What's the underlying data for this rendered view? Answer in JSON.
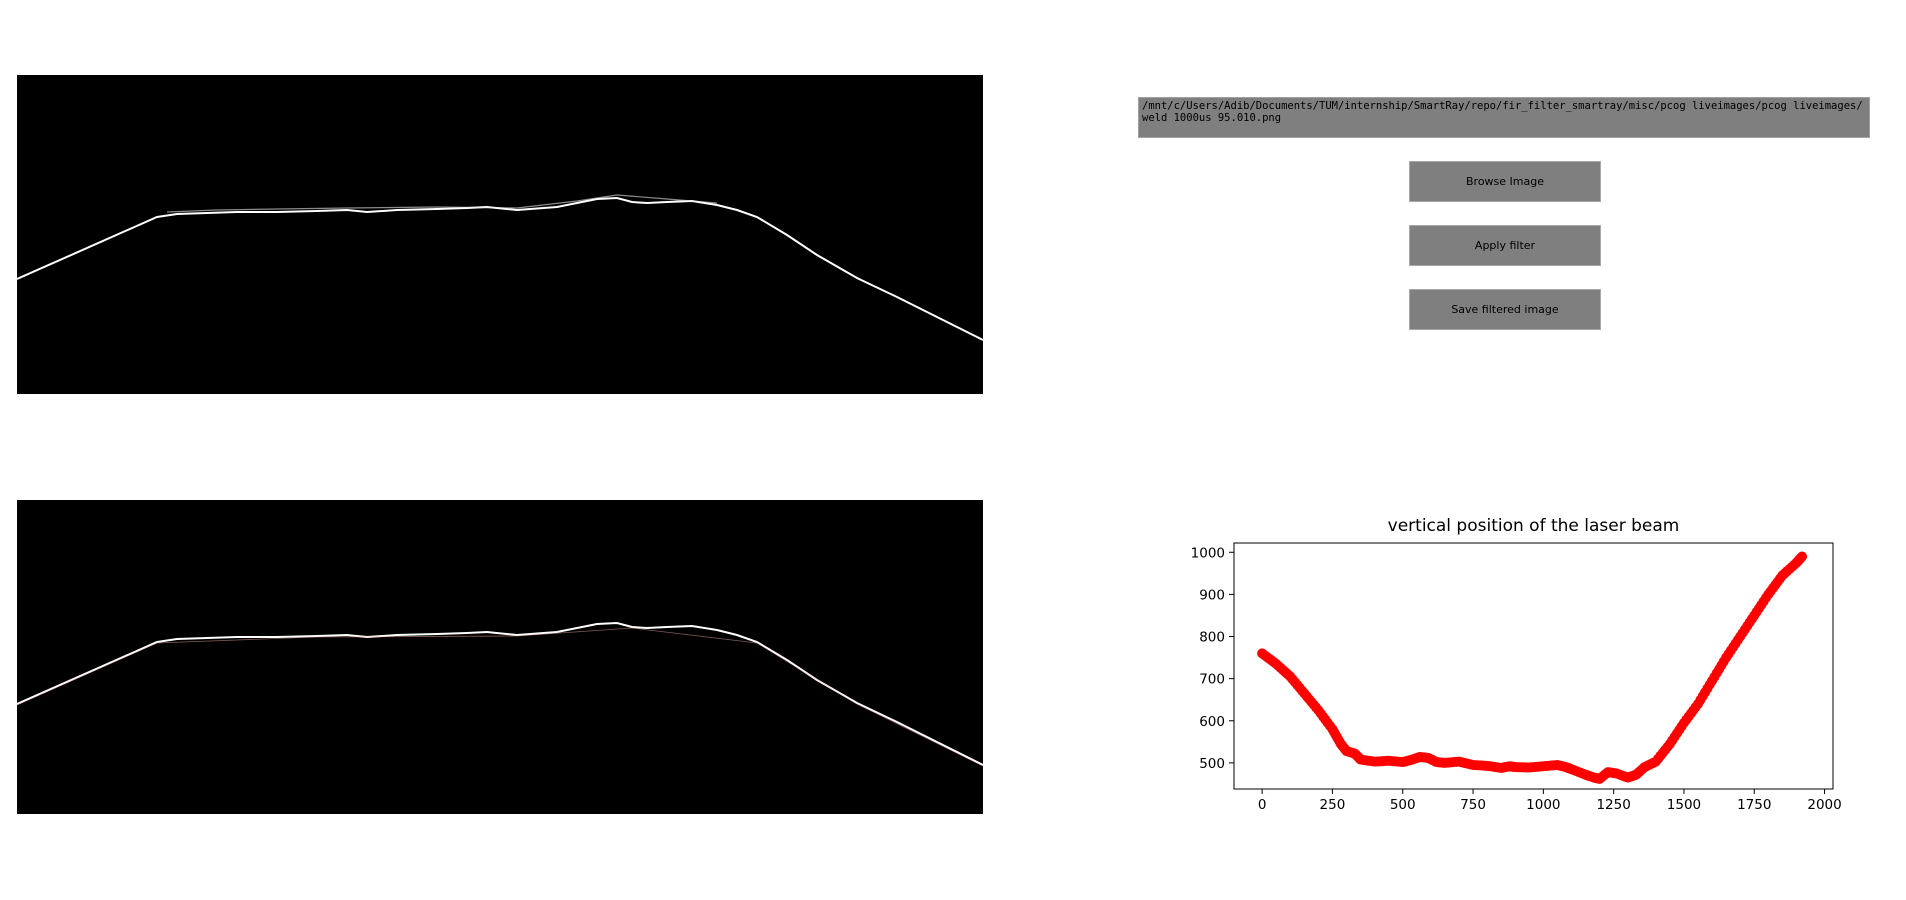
{
  "window": {
    "file_path": "/mnt/c/Users/Adib/Documents/TUM/internship/SmartRay/repo/fir_filter_smartray/misc/pcog liveimages/pcog liveimages/weld 1000us 95.010.png"
  },
  "buttons": {
    "browse_label": "Browse Image",
    "apply_label": "Apply filter",
    "save_label": "Save filtered image"
  },
  "colors": {
    "background": "#ffffff",
    "image_background": "#000000",
    "laser_line": "#ffffff",
    "button": "#7f7f7f",
    "plot_marker": "#ff0000"
  },
  "images": {
    "original": "laser-line-original",
    "filtered": "laser-line-filtered"
  },
  "chart_data": {
    "type": "scatter",
    "title": "vertical position of the laser beam",
    "xlabel": "",
    "ylabel": "",
    "xlim": [
      -100,
      2030
    ],
    "ylim": [
      438,
      1022
    ],
    "x_ticks": [
      0,
      250,
      500,
      750,
      1000,
      1250,
      1500,
      1750,
      2000
    ],
    "y_ticks": [
      500,
      600,
      700,
      800,
      900,
      1000
    ],
    "series": [
      {
        "color": "#ff0000",
        "points": [
          [
            0,
            760
          ],
          [
            50,
            735
          ],
          [
            100,
            705
          ],
          [
            150,
            665
          ],
          [
            200,
            625
          ],
          [
            250,
            580
          ],
          [
            280,
            545
          ],
          [
            300,
            528
          ],
          [
            330,
            522
          ],
          [
            350,
            508
          ],
          [
            400,
            503
          ],
          [
            450,
            505
          ],
          [
            500,
            502
          ],
          [
            530,
            507
          ],
          [
            560,
            514
          ],
          [
            590,
            512
          ],
          [
            620,
            502
          ],
          [
            650,
            500
          ],
          [
            700,
            503
          ],
          [
            750,
            495
          ],
          [
            800,
            493
          ],
          [
            850,
            488
          ],
          [
            880,
            492
          ],
          [
            900,
            490
          ],
          [
            950,
            489
          ],
          [
            1000,
            492
          ],
          [
            1050,
            495
          ],
          [
            1080,
            490
          ],
          [
            1100,
            485
          ],
          [
            1150,
            472
          ],
          [
            1180,
            465
          ],
          [
            1200,
            462
          ],
          [
            1230,
            478
          ],
          [
            1260,
            475
          ],
          [
            1300,
            465
          ],
          [
            1330,
            472
          ],
          [
            1360,
            490
          ],
          [
            1400,
            503
          ],
          [
            1450,
            545
          ],
          [
            1500,
            595
          ],
          [
            1550,
            640
          ],
          [
            1600,
            695
          ],
          [
            1650,
            750
          ],
          [
            1700,
            800
          ],
          [
            1750,
            850
          ],
          [
            1800,
            900
          ],
          [
            1850,
            945
          ],
          [
            1900,
            975
          ],
          [
            1920,
            990
          ]
        ]
      }
    ]
  }
}
